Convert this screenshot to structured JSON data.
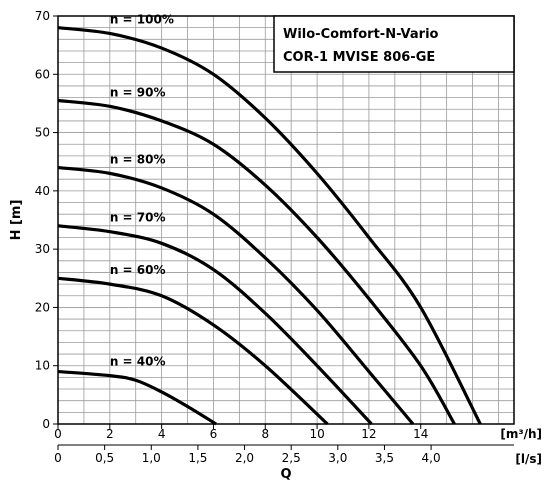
{
  "chart_data": {
    "type": "line",
    "title": [
      "Wilo-Comfort-N-Vario",
      "COR-1 MVISE 806-GE"
    ],
    "ylabel": "H [m]",
    "xlabel": "Q",
    "x_unit": "[m³/h]",
    "x2_unit": "[l/s]",
    "xlim": [
      0,
      17.6
    ],
    "ylim": [
      0,
      70
    ],
    "grid": true,
    "x_ticks": [
      "0",
      "2",
      "4",
      "6",
      "8",
      "10",
      "12",
      "14"
    ],
    "x_tick_values": [
      0,
      2,
      4,
      6,
      8,
      10,
      12,
      14
    ],
    "x2_ticks": [
      "0",
      "0,5",
      "1,0",
      "1,5",
      "2,0",
      "2,5",
      "3,0",
      "3,5",
      "4,0"
    ],
    "x2_tick_values": [
      0,
      0.5,
      1.0,
      1.5,
      2.0,
      2.5,
      3.0,
      3.5,
      4.0
    ],
    "y_ticks": [
      "0",
      "10",
      "20",
      "30",
      "40",
      "50",
      "60",
      "70"
    ],
    "y_tick_values": [
      0,
      10,
      20,
      30,
      40,
      50,
      60,
      70
    ],
    "series": [
      {
        "name": "n = 100%",
        "x": [
          0,
          2,
          4,
          6,
          8,
          10,
          12,
          14,
          16.3
        ],
        "y": [
          68,
          67,
          64.5,
          60,
          52.5,
          43,
          32,
          20,
          0
        ]
      },
      {
        "name": "n = 90%",
        "x": [
          0,
          2,
          4,
          6,
          8,
          10,
          12,
          14,
          15.3
        ],
        "y": [
          55.5,
          54.5,
          52,
          48,
          41,
          32,
          21.5,
          10,
          0
        ]
      },
      {
        "name": "n = 80%",
        "x": [
          0,
          2,
          4,
          6,
          8,
          10,
          12,
          13.7
        ],
        "y": [
          44,
          43,
          40.5,
          36,
          28.5,
          19.5,
          9,
          0
        ]
      },
      {
        "name": "n = 70%",
        "x": [
          0,
          2,
          4,
          6,
          8,
          10,
          12.1
        ],
        "y": [
          34,
          33,
          31,
          26.5,
          19,
          10,
          0
        ]
      },
      {
        "name": "n = 60%",
        "x": [
          0,
          2,
          4,
          6,
          8,
          10.4
        ],
        "y": [
          25,
          24,
          22,
          17,
          10,
          0
        ]
      },
      {
        "name": "n = 40%",
        "x": [
          0,
          2,
          3,
          4,
          5,
          6.1
        ],
        "y": [
          9,
          8.3,
          7.5,
          5.5,
          3,
          0
        ]
      }
    ]
  }
}
